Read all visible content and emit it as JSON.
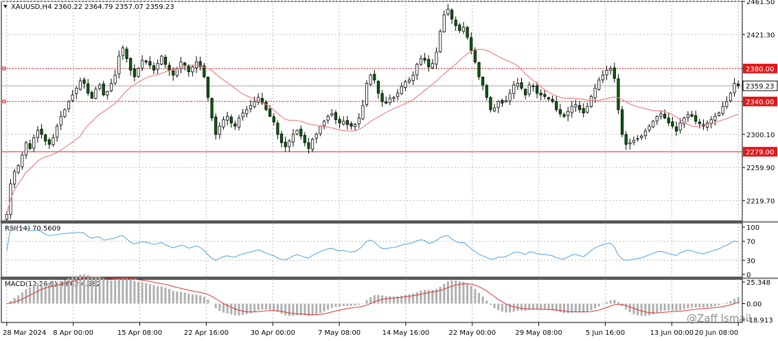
{
  "chart_data": {
    "type": "candlestick",
    "symbol_header": "XAUUSD,H4  2360.22 2364.79 2357.07 2359.23",
    "timeframe": "H4",
    "last_price_label": "2359.23",
    "price_axis_ticks": [
      "2461.50",
      "2421.30",
      "2380.00",
      "2340.00",
      "2300.10",
      "2259.90",
      "2219.70"
    ],
    "price_range": [
      2195,
      2461.5
    ],
    "x_labels": [
      "28 Mar 2024",
      "8 Apr 00:00",
      "15 Apr 08:00",
      "22 Apr 16:00",
      "30 Apr 00:00",
      "7 May 08:00",
      "14 May 16:00",
      "22 May 00:00",
      "29 May 08:00",
      "5 Jun 16:00",
      "13 Jun 00:00",
      "20 Jun 08:00"
    ],
    "levels": [
      {
        "value": 2380.0,
        "label": "2380.00",
        "style": "dotted",
        "color": "#e0191b"
      },
      {
        "value": 2340.0,
        "label": "2340.00",
        "style": "dotted",
        "color": "#e0191b"
      },
      {
        "value": 2279.0,
        "label": "2279.00",
        "style": "solid",
        "color": "#e0191b"
      }
    ],
    "close_series": [
      2203,
      2240,
      2255,
      2262,
      2275,
      2290,
      2283,
      2296,
      2305,
      2300,
      2292,
      2288,
      2296,
      2310,
      2322,
      2330,
      2340,
      2348,
      2356,
      2365,
      2362,
      2350,
      2344,
      2355,
      2360,
      2348,
      2352,
      2362,
      2372,
      2395,
      2405,
      2392,
      2378,
      2370,
      2380,
      2390,
      2388,
      2384,
      2378,
      2386,
      2395,
      2385,
      2378,
      2372,
      2380,
      2388,
      2384,
      2376,
      2382,
      2388,
      2382,
      2370,
      2345,
      2320,
      2300,
      2310,
      2318,
      2322,
      2314,
      2310,
      2320,
      2326,
      2330,
      2335,
      2340,
      2345,
      2338,
      2330,
      2322,
      2315,
      2300,
      2290,
      2285,
      2292,
      2300,
      2305,
      2298,
      2290,
      2283,
      2294,
      2300,
      2310,
      2316,
      2322,
      2325,
      2318,
      2314,
      2316,
      2312,
      2310,
      2312,
      2320,
      2335,
      2362,
      2372,
      2366,
      2350,
      2340,
      2338,
      2344,
      2345,
      2350,
      2358,
      2364,
      2366,
      2372,
      2385,
      2392,
      2390,
      2382,
      2386,
      2400,
      2425,
      2445,
      2452,
      2440,
      2432,
      2426,
      2430,
      2418,
      2402,
      2388,
      2370,
      2360,
      2345,
      2330,
      2332,
      2340,
      2338,
      2341,
      2350,
      2360,
      2362,
      2356,
      2348,
      2360,
      2358,
      2350,
      2348,
      2346,
      2343,
      2340,
      2330,
      2325,
      2322,
      2328,
      2334,
      2336,
      2330,
      2326,
      2334,
      2346,
      2356,
      2366,
      2372,
      2378,
      2380,
      2368,
      2330,
      2300,
      2288,
      2290,
      2293,
      2295,
      2298,
      2304,
      2310,
      2316,
      2322,
      2325,
      2320,
      2314,
      2310,
      2304,
      2314,
      2320,
      2324,
      2322,
      2316,
      2313,
      2310,
      2314,
      2318,
      2322,
      2326,
      2334,
      2340,
      2350,
      2362,
      2359
    ],
    "ma_period": 20,
    "rsi": {
      "label": "RSI(14) 70.5609",
      "period": 14,
      "levels": [
        30,
        70
      ],
      "axis_ticks": [
        "100",
        "70",
        "30",
        "0"
      ]
    },
    "macd": {
      "label": "MACD(12,26,9) 8.862 4.982",
      "fast": 12,
      "slow": 26,
      "signal": 9,
      "axis_ticks": [
        "25.348",
        "0.00",
        "-18.913"
      ]
    },
    "watermark": "@Zaff Ismail",
    "colors": {
      "bull": "#ffffff",
      "bear": "#006400",
      "wick": "#000000",
      "ma": "#f08080",
      "level": "#e0191b",
      "rsi": "#4fa0e0",
      "macd_hist": "#b0b0b0",
      "macd_signal": "#e03030",
      "grid": "#b8b8b8"
    }
  }
}
